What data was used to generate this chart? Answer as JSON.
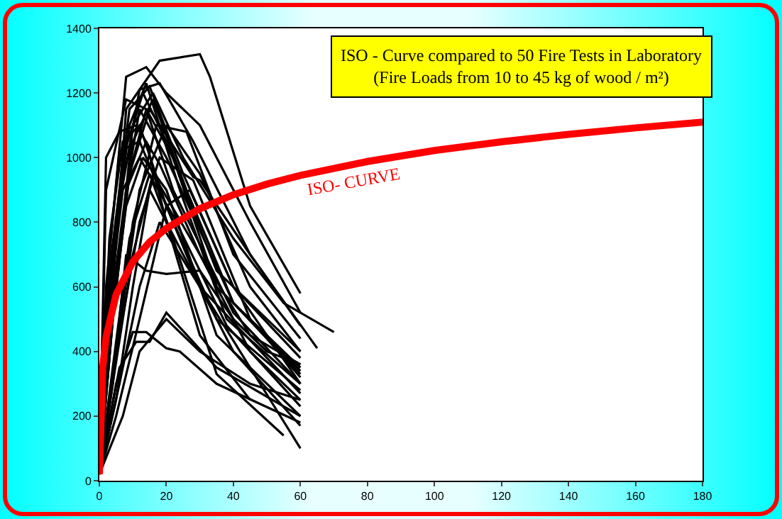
{
  "chart_data": {
    "type": "line",
    "title": "ISO - Curve compared to 50 Fire Tests in Laboratory",
    "subtitle": "(Fire Loads from 10 to 45 kg of wood / m²)",
    "xlim": [
      0,
      180
    ],
    "ylim": [
      0,
      1400
    ],
    "xticks": [
      0,
      20,
      40,
      60,
      80,
      100,
      120,
      140,
      160,
      180
    ],
    "yticks": [
      0,
      200,
      400,
      600,
      800,
      1000,
      1200,
      1400
    ],
    "series": [
      {
        "color": "#000000",
        "x": [
          0,
          4,
          8,
          18,
          30,
          33,
          45,
          60
        ],
        "values": [
          20,
          600,
          1150,
          1300,
          1320,
          1250,
          850,
          580
        ]
      },
      {
        "color": "#000000",
        "x": [
          0,
          3,
          8,
          14,
          20,
          30,
          45,
          60
        ],
        "values": [
          20,
          700,
          1250,
          1280,
          1200,
          1100,
          800,
          520
        ]
      },
      {
        "color": "#000000",
        "x": [
          0,
          4,
          10,
          16,
          25,
          40,
          55,
          70
        ],
        "values": [
          20,
          500,
          1100,
          1200,
          1000,
          750,
          550,
          460
        ]
      },
      {
        "color": "#000000",
        "x": [
          0,
          5,
          12,
          18,
          28,
          45,
          65
        ],
        "values": [
          20,
          800,
          1210,
          1230,
          1050,
          700,
          410
        ]
      },
      {
        "color": "#000000",
        "x": [
          0,
          3,
          9,
          15,
          25,
          40,
          60
        ],
        "values": [
          20,
          650,
          1150,
          1220,
          950,
          600,
          380
        ]
      },
      {
        "color": "#000000",
        "x": [
          0,
          4,
          10,
          16,
          26,
          40,
          60
        ],
        "values": [
          20,
          500,
          1050,
          1180,
          900,
          550,
          330
        ]
      },
      {
        "color": "#000000",
        "x": [
          0,
          2,
          8,
          14,
          22,
          40,
          60
        ],
        "values": [
          20,
          900,
          1180,
          1150,
          900,
          520,
          300
        ]
      },
      {
        "color": "#000000",
        "x": [
          0,
          5,
          12,
          20,
          30,
          45,
          60
        ],
        "values": [
          20,
          400,
          900,
          1100,
          950,
          600,
          400
        ]
      },
      {
        "color": "#000000",
        "x": [
          0,
          3,
          7,
          12,
          20,
          35,
          60
        ],
        "values": [
          20,
          750,
          1050,
          1100,
          850,
          500,
          280
        ]
      },
      {
        "color": "#000000",
        "x": [
          0,
          4,
          9,
          14,
          22,
          35,
          60
        ],
        "values": [
          20,
          550,
          950,
          1150,
          1000,
          600,
          350
        ]
      },
      {
        "color": "#000000",
        "x": [
          0,
          6,
          12,
          18,
          28,
          45,
          60
        ],
        "values": [
          20,
          450,
          800,
          1000,
          930,
          500,
          320
        ]
      },
      {
        "color": "#000000",
        "x": [
          0,
          2,
          6,
          11,
          18,
          30,
          45,
          60
        ],
        "values": [
          20,
          1000,
          1080,
          1100,
          980,
          700,
          450,
          360
        ]
      },
      {
        "color": "#000000",
        "x": [
          0,
          4,
          10,
          16,
          30,
          45,
          60
        ],
        "values": [
          20,
          300,
          700,
          950,
          700,
          400,
          250
        ]
      },
      {
        "color": "#000000",
        "x": [
          0,
          3,
          8,
          13,
          20,
          35,
          60
        ],
        "values": [
          20,
          450,
          850,
          1000,
          900,
          450,
          200
        ]
      },
      {
        "color": "#000000",
        "x": [
          0,
          5,
          10,
          15,
          25,
          40,
          60
        ],
        "values": [
          20,
          250,
          600,
          900,
          700,
          400,
          170
        ]
      },
      {
        "color": "#000000",
        "x": [
          0,
          4,
          9,
          15,
          22,
          35,
          55
        ],
        "values": [
          20,
          350,
          750,
          950,
          750,
          330,
          140
        ]
      },
      {
        "color": "#000000",
        "x": [
          0,
          6,
          12,
          18,
          30,
          45,
          60
        ],
        "values": [
          20,
          300,
          600,
          800,
          600,
          350,
          100
        ]
      },
      {
        "color": "#000000",
        "x": [
          0,
          3,
          8,
          14,
          20,
          30,
          45
        ],
        "values": [
          20,
          500,
          900,
          1050,
          800,
          450,
          250
        ]
      },
      {
        "color": "#000000",
        "x": [
          0,
          5,
          12,
          20,
          27,
          40,
          60
        ],
        "values": [
          20,
          200,
          500,
          850,
          900,
          600,
          300
        ]
      },
      {
        "color": "#000000",
        "x": [
          0,
          4,
          8,
          14,
          20,
          30,
          40,
          50,
          60
        ],
        "values": [
          20,
          300,
          700,
          650,
          640,
          650,
          500,
          400,
          360
        ]
      },
      {
        "color": "#000000",
        "x": [
          0,
          6,
          11,
          15,
          20,
          35,
          60
        ],
        "values": [
          20,
          350,
          430,
          430,
          520,
          350,
          200
        ]
      },
      {
        "color": "#000000",
        "x": [
          0,
          5,
          10,
          14,
          20,
          24,
          35,
          60
        ],
        "values": [
          20,
          300,
          460,
          460,
          410,
          400,
          300,
          180
        ]
      },
      {
        "color": "#000000",
        "x": [
          0,
          7,
          12,
          20,
          30,
          45,
          60
        ],
        "values": [
          20,
          200,
          400,
          500,
          400,
          300,
          250
        ]
      },
      {
        "color": "#000000",
        "x": [
          0,
          3,
          7,
          13,
          20,
          35,
          60
        ],
        "values": [
          20,
          600,
          1000,
          1200,
          1050,
          650,
          400
        ]
      },
      {
        "color": "#000000",
        "x": [
          0,
          4,
          9,
          14,
          24,
          38,
          60
        ],
        "values": [
          20,
          700,
          1100,
          1230,
          900,
          500,
          300
        ]
      },
      {
        "color": "#000000",
        "x": [
          0,
          3,
          8,
          12,
          20,
          40,
          60
        ],
        "values": [
          20,
          400,
          900,
          1150,
          1000,
          550,
          340
        ]
      },
      {
        "color": "#000000",
        "x": [
          0,
          5,
          10,
          17,
          26,
          40,
          60
        ],
        "values": [
          20,
          400,
          800,
          1100,
          1080,
          700,
          440
        ]
      },
      {
        "color": "#000000",
        "x": [
          0,
          4,
          9,
          15,
          28,
          30,
          45,
          60
        ],
        "values": [
          20,
          500,
          950,
          1150,
          940,
          930,
          700,
          480
        ]
      },
      {
        "color": "#000000",
        "x": [
          0,
          2,
          6,
          12,
          18,
          30,
          60
        ],
        "values": [
          20,
          600,
          1020,
          1050,
          900,
          600,
          270
        ]
      },
      {
        "color": "#000000",
        "x": [
          0,
          3,
          7,
          12,
          22,
          38,
          60
        ],
        "values": [
          20,
          550,
          900,
          1000,
          820,
          480,
          230
        ]
      },
      {
        "name": "ISO- CURVE",
        "color": "#ff0000",
        "x": [
          0,
          1,
          2,
          5,
          10,
          15,
          20,
          30,
          40,
          50,
          60,
          80,
          100,
          120,
          140,
          160,
          180
        ],
        "values": [
          20,
          349,
          444,
          576,
          678,
          739,
          781,
          842,
          885,
          918,
          945,
          988,
          1022,
          1049,
          1072,
          1092,
          1110
        ]
      }
    ]
  }
}
